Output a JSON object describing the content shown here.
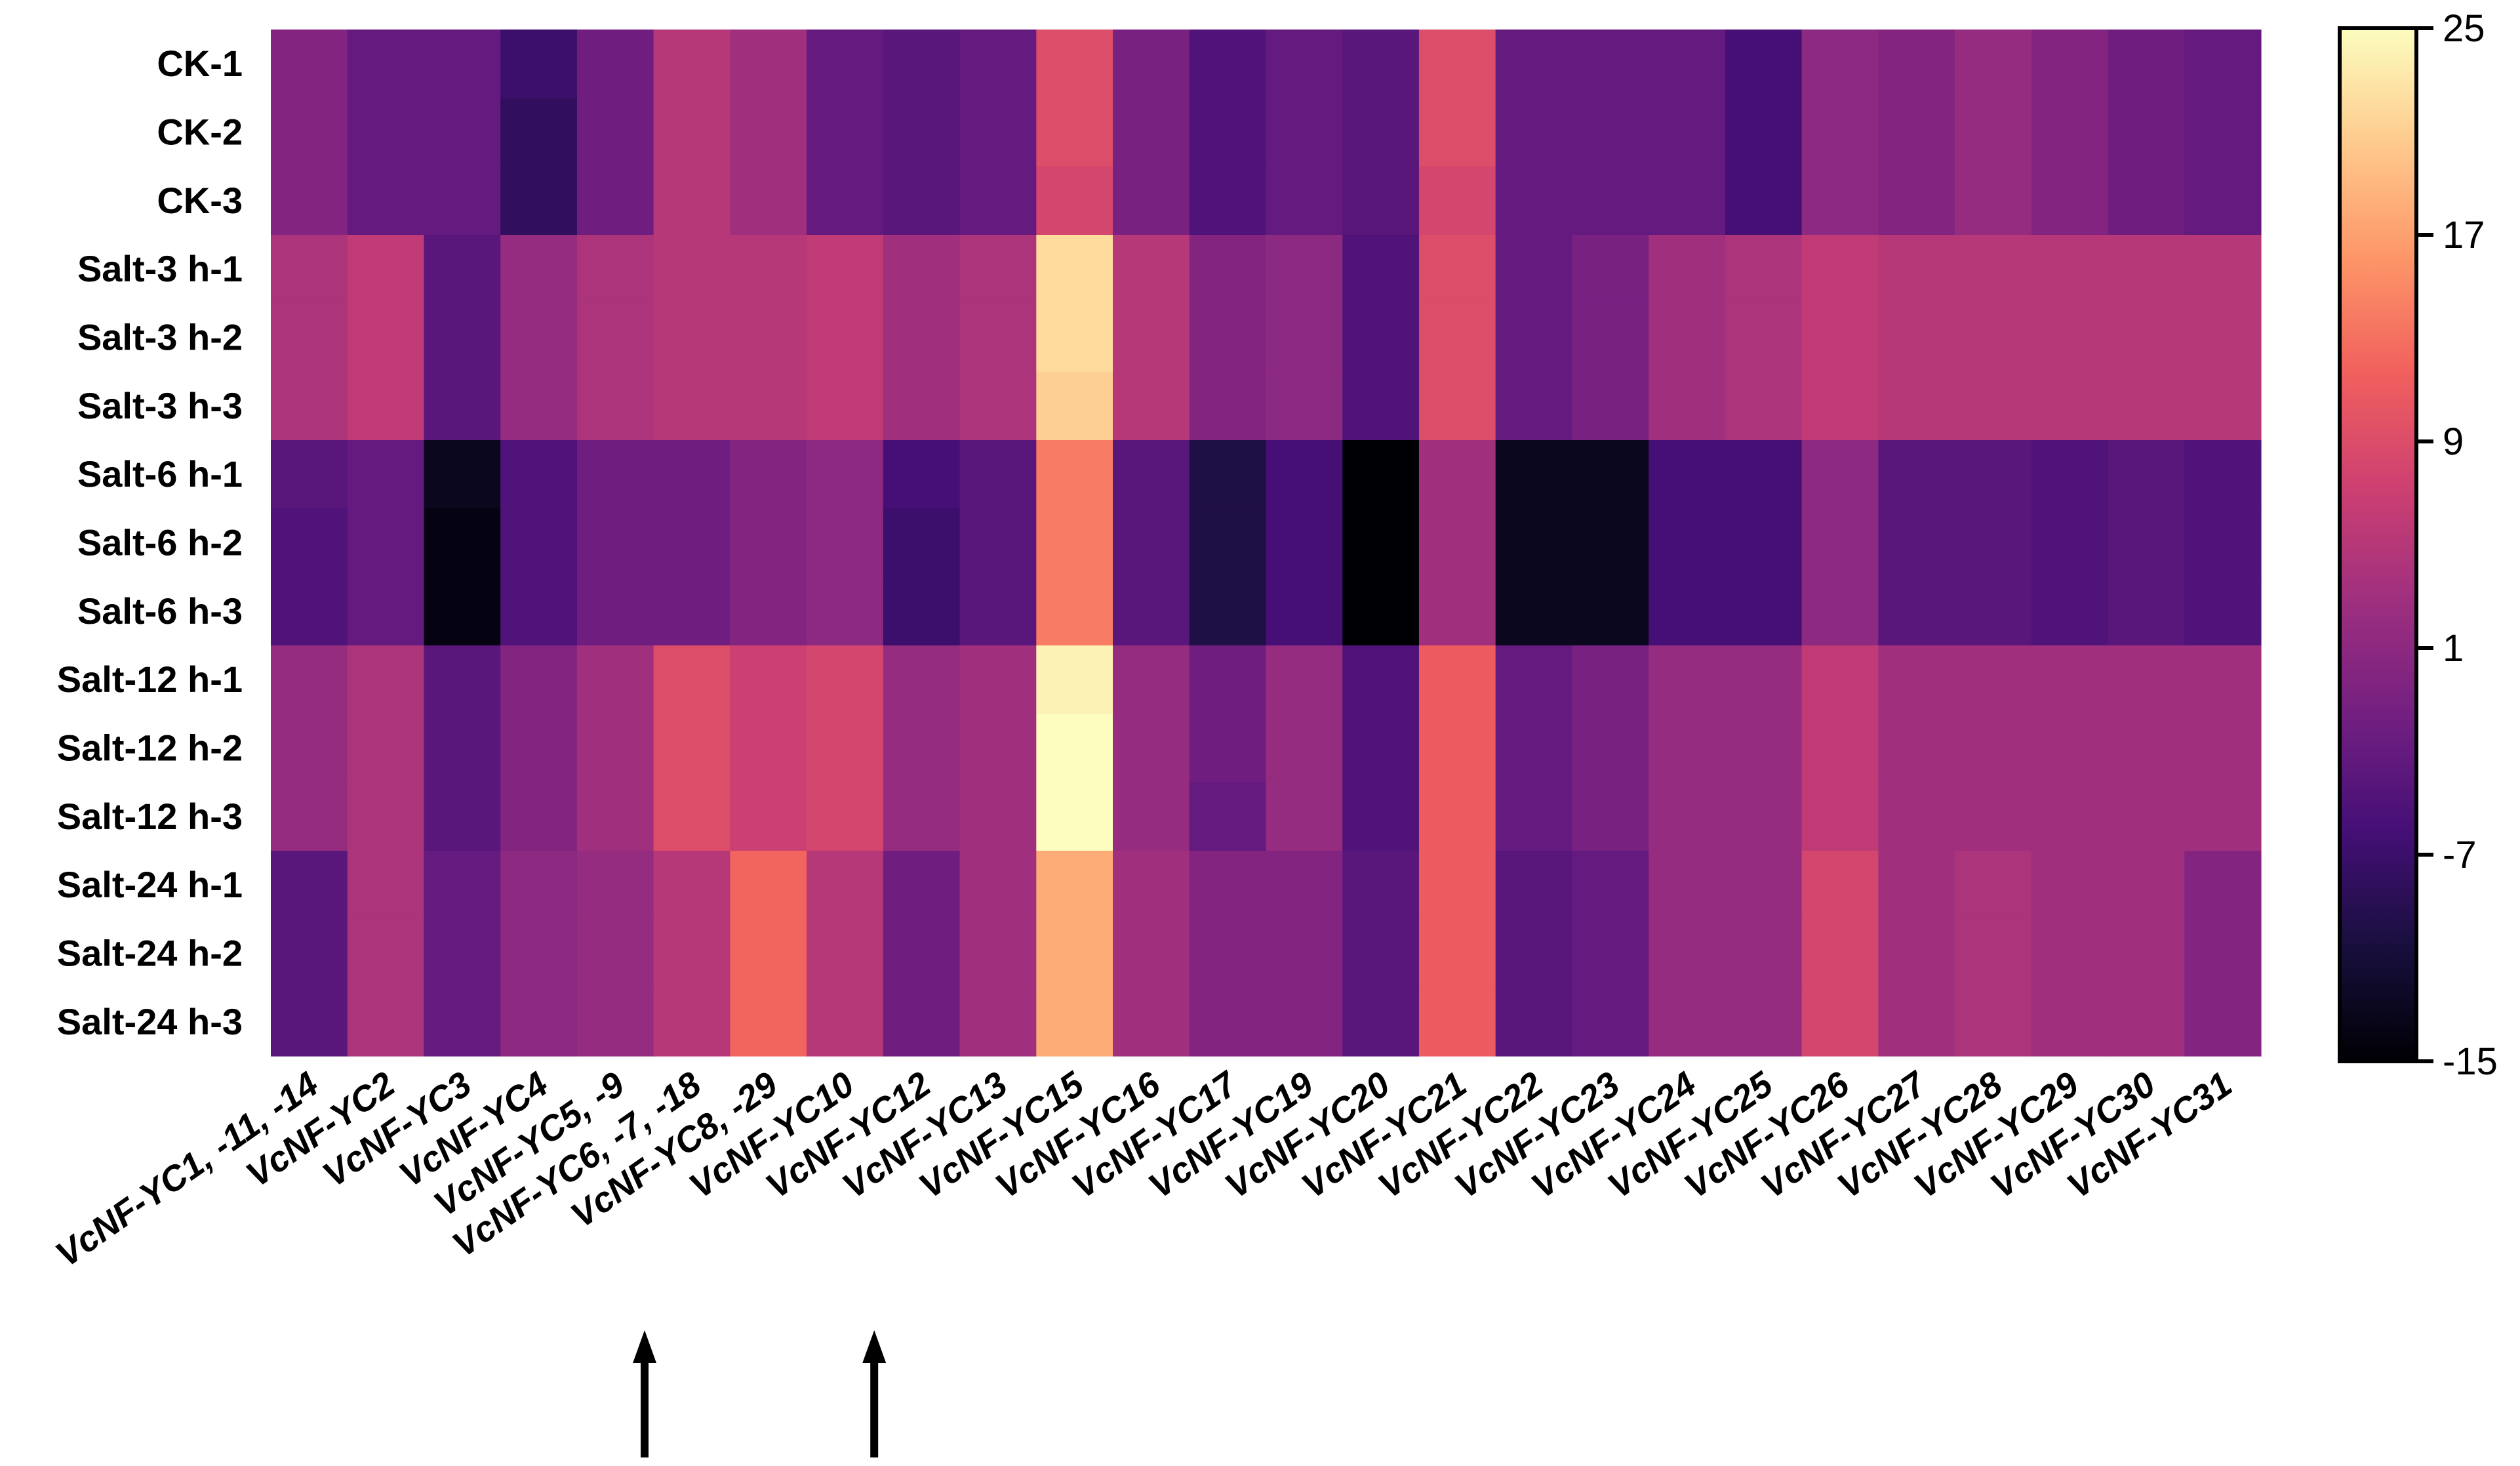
{
  "chart_data": {
    "type": "heatmap",
    "title": "",
    "xlabel": "",
    "ylabel": "",
    "rows": [
      "CK-1",
      "CK-2",
      "CK-3",
      "Salt-3 h-1",
      "Salt-3 h-2",
      "Salt-3 h-3",
      "Salt-6 h-1",
      "Salt-6 h-2",
      "Salt-6 h-3",
      "Salt-12 h-1",
      "Salt-12 h-2",
      "Salt-12 h-3",
      "Salt-24 h-1",
      "Salt-24 h-2",
      "Salt-24 h-3"
    ],
    "columns": [
      "VcNF-YC1, -11, -14",
      "VcNF-YC2",
      "VcNF-YC3",
      "VcNF-YC4",
      "VcNF-YC5, -9",
      "VcNF-YC6, -7, -18",
      "VcNF-YC8, -29",
      "VcNF-YC10",
      "VcNF-YC12",
      "VcNF-YC13",
      "VcNF-YC15",
      "VcNF-YC16",
      "VcNF-YC17",
      "VcNF-YC19",
      "VcNF-YC20",
      "VcNF-YC21",
      "VcNF-YC22",
      "VcNF-YC23",
      "VcNF-YC24",
      "VcNF-YC25",
      "VcNF-YC26",
      "VcNF-YC27",
      "VcNF-YC28",
      "VcNF-YC29",
      "VcNF-YC30",
      "VcNF-YC31"
    ],
    "values": [
      [
        0,
        -3,
        -3,
        -7,
        -2,
        5,
        3,
        -3,
        -4,
        -3,
        9,
        -1,
        -5,
        -3,
        -4,
        9,
        -3,
        -3,
        -3,
        -6,
        1,
        0,
        2,
        0,
        -2,
        -3
      ],
      [
        0,
        -3,
        -3,
        -8,
        -2,
        5,
        3,
        -3,
        -4,
        -3,
        9,
        -1,
        -5,
        -3,
        -4,
        9,
        -3,
        -3,
        -3,
        -6,
        1,
        0,
        2,
        0,
        -2,
        -3
      ],
      [
        0,
        -3,
        -3,
        -8,
        -2,
        5,
        3,
        -3,
        -4,
        -3,
        8,
        -1,
        -5,
        -3,
        -4,
        8,
        -3,
        -3,
        -3,
        -6,
        1,
        0,
        2,
        0,
        -2,
        -3
      ],
      [
        4,
        6,
        -4,
        2,
        4,
        5,
        5,
        6,
        3,
        4,
        22,
        5,
        0,
        1,
        -5,
        9,
        -3,
        -1,
        3,
        4,
        6,
        5,
        5,
        5,
        5,
        5
      ],
      [
        4,
        6,
        -4,
        2,
        4,
        5,
        5,
        6,
        3,
        4,
        22,
        5,
        0,
        1,
        -5,
        9,
        -3,
        -1,
        3,
        4,
        6,
        5,
        5,
        5,
        5,
        5
      ],
      [
        4,
        6,
        -4,
        2,
        4,
        5,
        5,
        6,
        3,
        4,
        21,
        5,
        0,
        1,
        -5,
        9,
        -3,
        -1,
        3,
        4,
        6,
        5,
        5,
        5,
        5,
        5
      ],
      [
        -4,
        -3,
        -13,
        -5,
        -2,
        -2,
        0,
        1,
        -6,
        -4,
        14,
        -4,
        -10,
        -6,
        -15,
        3,
        -13,
        -13,
        -6,
        -6,
        1,
        -4,
        -4,
        -5,
        -4,
        -5
      ],
      [
        -5,
        -3,
        -14,
        -5,
        -2,
        -2,
        0,
        1,
        -7,
        -4,
        14,
        -4,
        -10,
        -6,
        -15,
        3,
        -13,
        -13,
        -6,
        -6,
        1,
        -4,
        -4,
        -5,
        -4,
        -5
      ],
      [
        -5,
        -3,
        -14,
        -5,
        -2,
        -2,
        0,
        1,
        -7,
        -4,
        14,
        -4,
        -10,
        -6,
        -15,
        3,
        -13,
        -13,
        -6,
        -6,
        1,
        -4,
        -4,
        -5,
        -4,
        -5
      ],
      [
        2,
        4,
        -4,
        0,
        3,
        9,
        7,
        8,
        2,
        3,
        24,
        2,
        -2,
        2,
        -5,
        11,
        -3,
        -1,
        2,
        2,
        6,
        3,
        3,
        3,
        3,
        3
      ],
      [
        2,
        4,
        -4,
        0,
        3,
        9,
        7,
        8,
        2,
        3,
        25,
        2,
        -2,
        2,
        -5,
        11,
        -3,
        -1,
        2,
        2,
        6,
        3,
        3,
        3,
        3,
        3
      ],
      [
        2,
        4,
        -4,
        0,
        3,
        9,
        7,
        8,
        2,
        3,
        25,
        2,
        -3,
        2,
        -5,
        11,
        -3,
        -1,
        2,
        2,
        6,
        3,
        3,
        3,
        3,
        3
      ],
      [
        -4,
        4,
        -3,
        1,
        2,
        5,
        12,
        5,
        -2,
        3,
        18,
        3,
        0,
        0,
        -4,
        11,
        -4,
        -3,
        2,
        2,
        8,
        3,
        4,
        3,
        3,
        0
      ],
      [
        -4,
        4,
        -3,
        1,
        2,
        5,
        12,
        5,
        -2,
        3,
        18,
        3,
        0,
        0,
        -4,
        11,
        -4,
        -3,
        2,
        2,
        8,
        3,
        4,
        3,
        3,
        0
      ],
      [
        -4,
        4,
        -3,
        1,
        2,
        5,
        12,
        5,
        -2,
        3,
        18,
        3,
        0,
        0,
        -4,
        11,
        -4,
        -3,
        2,
        2,
        8,
        3,
        4,
        3,
        3,
        0
      ]
    ],
    "colorbar": {
      "min": -15,
      "max": 25,
      "ticks": [
        "25",
        "17",
        "9",
        "1",
        "-7",
        "-15"
      ],
      "colormap": "magma",
      "stops": [
        "#000004",
        "#180f3d",
        "#440f76",
        "#721f81",
        "#9e2f7f",
        "#cd4071",
        "#f1605d",
        "#fd9668",
        "#feca8d",
        "#fcfdbf"
      ]
    },
    "annotations": {
      "arrows_below_columns": [
        "VcNF-YC6, -7, -18",
        "VcNF-YC12"
      ]
    },
    "legend": "right",
    "grid": false
  }
}
